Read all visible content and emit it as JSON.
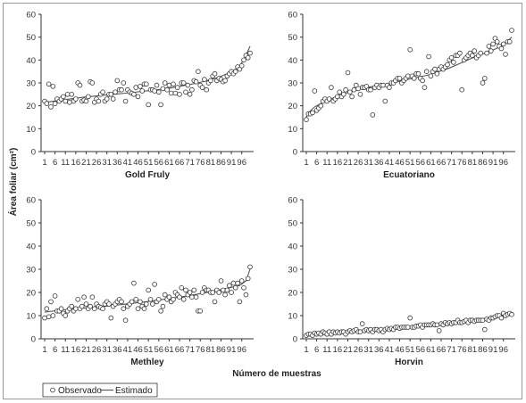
{
  "figure": {
    "ylabel": "Área foliar (cm²)",
    "xlabel": "Número de muestras"
  },
  "legend": {
    "observed": "Observado",
    "estimated": "Estimado"
  },
  "chart_data": [
    {
      "type": "scatter",
      "title": "Gold Fruly",
      "ylim": [
        0,
        60
      ],
      "yticks": [
        0,
        10,
        20,
        30,
        40,
        50,
        60
      ],
      "xticks": [
        1,
        6,
        11,
        16,
        21,
        26,
        31,
        36,
        41,
        46,
        51,
        56,
        61,
        66,
        71,
        76,
        81,
        86,
        91,
        96
      ],
      "xlim": [
        1,
        100
      ],
      "series": [
        {
          "name": "Observado",
          "x": [
            1,
            2,
            3,
            4,
            5,
            6,
            7,
            8,
            9,
            10,
            11,
            12,
            13,
            14,
            15,
            16,
            17,
            18,
            19,
            20,
            21,
            22,
            23,
            24,
            25,
            26,
            27,
            28,
            29,
            30,
            31,
            32,
            33,
            34,
            35,
            36,
            37,
            38,
            39,
            40,
            41,
            42,
            43,
            44,
            45,
            46,
            47,
            48,
            49,
            50,
            51,
            52,
            53,
            54,
            55,
            56,
            57,
            58,
            59,
            60,
            61,
            62,
            63,
            64,
            65,
            66,
            67,
            68,
            69,
            70,
            71,
            72,
            73,
            74,
            75,
            76,
            77,
            78,
            79,
            80,
            81,
            82,
            83,
            84,
            85,
            86,
            87,
            88,
            89,
            90,
            91,
            92,
            93,
            94,
            95,
            96,
            97,
            98,
            99,
            100
          ],
          "y": [
            22,
            21,
            29.5,
            19.5,
            28.5,
            21,
            23,
            22,
            23,
            24,
            22,
            25,
            21.5,
            25,
            22,
            23,
            30,
            29,
            22,
            22.5,
            22,
            24,
            30.5,
            30,
            21.5,
            23,
            22,
            25,
            26,
            22,
            23,
            25,
            25,
            23,
            26,
            31,
            27,
            27,
            30,
            22,
            27,
            26,
            25.5,
            25,
            28,
            24,
            28.5,
            26.5,
            29.5,
            29.5,
            20.5,
            27,
            27,
            26.5,
            29,
            26,
            20.5,
            27.5,
            30,
            27,
            29,
            25.5,
            29.5,
            25.5,
            28,
            25,
            30,
            30,
            26,
            29,
            25,
            27,
            31,
            30.5,
            35,
            29,
            28,
            31.5,
            27,
            30,
            31,
            33,
            34,
            31,
            32,
            31.5,
            30.5,
            31,
            33,
            34,
            35,
            34,
            35,
            37,
            36,
            37.5,
            40,
            42,
            41,
            43
          ]
        },
        {
          "name": "Estimado",
          "x": [
            1,
            20,
            40,
            60,
            75,
            85,
            90,
            94,
            97,
            100
          ],
          "y": [
            21.5,
            23.8,
            25.5,
            27.5,
            30,
            32.5,
            34.5,
            36.5,
            40,
            46
          ]
        }
      ]
    },
    {
      "type": "scatter",
      "title": "Ecuatoriano",
      "ylim": [
        0,
        60
      ],
      "yticks": [
        0,
        10,
        20,
        30,
        40,
        50,
        60
      ],
      "xticks": [
        1,
        6,
        11,
        16,
        21,
        26,
        31,
        36,
        41,
        46,
        51,
        56,
        61,
        66,
        71,
        76,
        81,
        86,
        91,
        96
      ],
      "xlim": [
        1,
        100
      ],
      "series": [
        {
          "name": "Observado",
          "x": [
            1,
            2,
            3,
            4,
            5,
            6,
            7,
            8,
            9,
            10,
            11,
            12,
            13,
            14,
            15,
            16,
            17,
            18,
            19,
            20,
            21,
            22,
            23,
            24,
            25,
            26,
            27,
            28,
            29,
            30,
            31,
            32,
            33,
            34,
            35,
            36,
            37,
            38,
            39,
            40,
            41,
            42,
            43,
            44,
            45,
            46,
            47,
            48,
            49,
            50,
            51,
            52,
            53,
            54,
            55,
            56,
            57,
            58,
            59,
            60,
            61,
            62,
            63,
            64,
            65,
            66,
            67,
            68,
            69,
            70,
            71,
            72,
            73,
            74,
            75,
            76,
            77,
            78,
            79,
            80,
            81,
            82,
            83,
            84,
            85,
            86,
            87,
            88,
            89,
            90,
            91,
            92,
            93,
            94,
            95,
            96,
            97,
            98,
            99,
            100
          ],
          "y": [
            14,
            16.5,
            16.5,
            17,
            26.5,
            18,
            19,
            20,
            22,
            23,
            22,
            23,
            28,
            22,
            23,
            24,
            26,
            24,
            25,
            27,
            34.5,
            26,
            24,
            27,
            29,
            27.5,
            25,
            28,
            28,
            28.5,
            27,
            27,
            16,
            28,
            29,
            28,
            29,
            29,
            22,
            29,
            28,
            30,
            30,
            31,
            32,
            32,
            30,
            31,
            32,
            33,
            44.5,
            33,
            32,
            34,
            34,
            32,
            31,
            28,
            35,
            41.5,
            33,
            35,
            36,
            34,
            36,
            37,
            36,
            37,
            38,
            40,
            41,
            39,
            42,
            42,
            43,
            27,
            40,
            41,
            42,
            43,
            42,
            44,
            41,
            42,
            43,
            30,
            32,
            43,
            46,
            44,
            47,
            49.5,
            48,
            46,
            45,
            47,
            42.5,
            48,
            48,
            53
          ]
        },
        {
          "name": "Estimado",
          "x": [
            1,
            2,
            5,
            10,
            20,
            30,
            40,
            50,
            60,
            70,
            80,
            90,
            95,
            100
          ],
          "y": [
            15,
            17,
            19.5,
            22,
            25.5,
            28,
            29.5,
            31.5,
            33.5,
            36.5,
            40.5,
            44,
            46,
            50
          ]
        }
      ]
    },
    {
      "type": "scatter",
      "title": "Methley",
      "ylim": [
        0,
        60
      ],
      "yticks": [
        0,
        10,
        20,
        30,
        40,
        50,
        60
      ],
      "xticks": [
        1,
        6,
        11,
        16,
        21,
        26,
        31,
        36,
        41,
        46,
        51,
        56,
        61,
        66,
        71,
        76,
        81,
        86,
        91,
        96
      ],
      "xlim": [
        1,
        100
      ],
      "series": [
        {
          "name": "Observado",
          "x": [
            1,
            2,
            3,
            4,
            5,
            6,
            7,
            8,
            9,
            10,
            11,
            12,
            13,
            14,
            15,
            16,
            17,
            18,
            19,
            20,
            21,
            22,
            23,
            24,
            25,
            26,
            27,
            28,
            29,
            30,
            31,
            32,
            33,
            34,
            35,
            36,
            37,
            38,
            39,
            40,
            41,
            42,
            43,
            44,
            45,
            46,
            47,
            48,
            49,
            50,
            51,
            52,
            53,
            54,
            55,
            56,
            57,
            58,
            59,
            60,
            61,
            62,
            63,
            64,
            65,
            66,
            67,
            68,
            69,
            70,
            71,
            72,
            73,
            74,
            75,
            76,
            77,
            78,
            79,
            80,
            81,
            82,
            83,
            84,
            85,
            86,
            87,
            88,
            89,
            90,
            91,
            92,
            93,
            94,
            95,
            96,
            97,
            98,
            99,
            100
          ],
          "y": [
            9,
            13,
            9.5,
            16,
            10,
            18.5,
            12,
            12,
            13,
            11,
            10,
            12,
            13,
            14,
            12,
            13,
            17,
            13,
            14,
            18,
            15,
            13,
            14,
            18,
            13,
            15,
            14,
            13.5,
            13,
            15,
            16,
            15,
            9,
            14,
            15,
            16,
            17,
            16,
            13,
            8,
            14,
            15,
            16,
            24,
            17,
            13,
            16,
            14,
            13,
            15,
            21,
            17,
            15,
            23.5,
            16,
            17,
            12,
            14,
            19,
            17,
            18,
            16,
            17,
            20,
            19,
            18,
            22,
            17,
            21,
            19,
            20,
            18,
            21,
            18,
            12,
            12,
            20,
            22,
            21,
            21,
            20,
            20,
            16,
            21,
            20,
            25,
            21,
            19,
            21,
            23,
            20,
            24,
            22,
            24,
            16,
            25,
            22,
            19,
            26,
            31
          ]
        },
        {
          "name": "Estimado",
          "x": [
            1,
            10,
            30,
            50,
            70,
            85,
            95,
            98,
            100
          ],
          "y": [
            11.5,
            12.5,
            14,
            16,
            18.5,
            21,
            23,
            25,
            30
          ]
        }
      ]
    },
    {
      "type": "scatter",
      "title": "Horvin",
      "ylim": [
        0,
        60
      ],
      "yticks": [
        0,
        10,
        20,
        30,
        40,
        50,
        60
      ],
      "xticks": [
        1,
        6,
        11,
        16,
        21,
        26,
        31,
        36,
        41,
        46,
        51,
        56,
        61,
        66,
        71,
        76,
        81,
        86,
        91,
        96
      ],
      "xlim": [
        1,
        100
      ],
      "series": [
        {
          "name": "Observado",
          "x": [
            1,
            2,
            3,
            4,
            5,
            6,
            7,
            8,
            9,
            10,
            11,
            12,
            13,
            14,
            15,
            16,
            17,
            18,
            19,
            20,
            21,
            22,
            23,
            24,
            25,
            26,
            27,
            28,
            29,
            30,
            31,
            32,
            33,
            34,
            35,
            36,
            37,
            38,
            39,
            40,
            41,
            42,
            43,
            44,
            45,
            46,
            47,
            48,
            49,
            50,
            51,
            52,
            53,
            54,
            55,
            56,
            57,
            58,
            59,
            60,
            61,
            62,
            63,
            64,
            65,
            66,
            67,
            68,
            69,
            70,
            71,
            72,
            73,
            74,
            75,
            76,
            77,
            78,
            79,
            80,
            81,
            82,
            83,
            84,
            85,
            86,
            87,
            88,
            89,
            90,
            91,
            92,
            93,
            94,
            95,
            96,
            97,
            98,
            99,
            100
          ],
          "y": [
            1.5,
            2,
            2,
            1.5,
            2.5,
            2,
            2.5,
            2,
            3,
            2.5,
            2,
            3,
            2,
            3,
            2.5,
            3,
            2.5,
            3,
            3,
            2,
            3,
            3.5,
            3,
            3.5,
            4,
            3,
            3,
            6.5,
            3.5,
            4,
            3.5,
            4,
            3,
            4,
            4,
            3.5,
            4,
            3,
            4,
            4.5,
            4,
            4.5,
            4,
            5,
            5,
            4.5,
            5,
            5,
            5,
            5,
            9,
            5,
            5,
            5.5,
            5.5,
            6,
            5,
            6,
            6,
            6,
            6,
            6.5,
            6,
            6,
            3.5,
            6.5,
            6,
            7,
            6.5,
            7,
            6.5,
            7,
            7,
            8,
            7,
            7,
            7.5,
            8,
            7,
            8,
            8,
            7.5,
            8,
            8,
            8,
            8,
            4,
            8.5,
            8,
            9,
            9,
            9.5,
            10,
            10,
            9,
            11,
            10,
            10.5,
            11,
            10.5
          ]
        },
        {
          "name": "Estimado",
          "x": [
            1,
            20,
            40,
            60,
            80,
            100
          ],
          "y": [
            2,
            3,
            4.2,
            6,
            7.8,
            10.5
          ]
        }
      ]
    }
  ]
}
